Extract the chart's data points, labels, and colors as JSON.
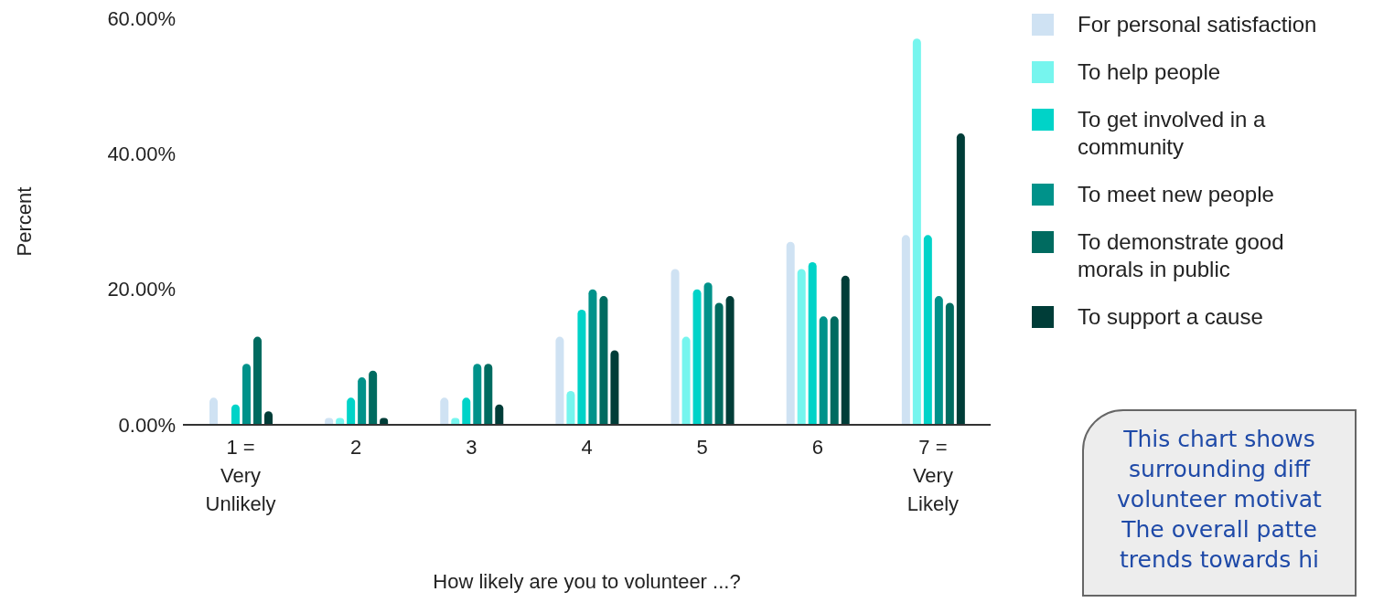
{
  "chart_data": {
    "type": "bar",
    "xlabel": "How likely are you to volunteer ...?",
    "ylabel": "Percent",
    "categories": [
      "1 = Very Unlikely",
      "2",
      "3",
      "4",
      "5",
      "6",
      "7 = Very Likely"
    ],
    "series": [
      {
        "name": "For personal satisfaction",
        "color": "#cfe2f3",
        "values": [
          4,
          1,
          4,
          13,
          23,
          27,
          28
        ]
      },
      {
        "name": "To help people",
        "color": "#76f5ee",
        "values": [
          0,
          1,
          1,
          5,
          13,
          23,
          57
        ]
      },
      {
        "name": "To get involved in a community",
        "color": "#00d3c8",
        "values": [
          3,
          4,
          4,
          17,
          20,
          24,
          28
        ]
      },
      {
        "name": "To meet new people",
        "color": "#00928a",
        "values": [
          9,
          7,
          9,
          20,
          21,
          16,
          19
        ]
      },
      {
        "name": "To demonstrate good morals in public",
        "color": "#006b60",
        "values": [
          13,
          8,
          9,
          19,
          18,
          16,
          18
        ]
      },
      {
        "name": "To support a cause",
        "color": "#003d38",
        "values": [
          2,
          1,
          3,
          11,
          19,
          22,
          43
        ]
      }
    ],
    "ylim": [
      0,
      60
    ],
    "yticks": [
      {
        "value": 0,
        "label": "0.00%"
      },
      {
        "value": 20,
        "label": "20.00%"
      },
      {
        "value": 40,
        "label": "40.00%"
      },
      {
        "value": 60,
        "label": "60.00%"
      }
    ],
    "grid": false,
    "legend": "right",
    "annotations": [
      "This chart shows surrounding diff volunteer motivat The overall patte trends towards hi"
    ]
  }
}
